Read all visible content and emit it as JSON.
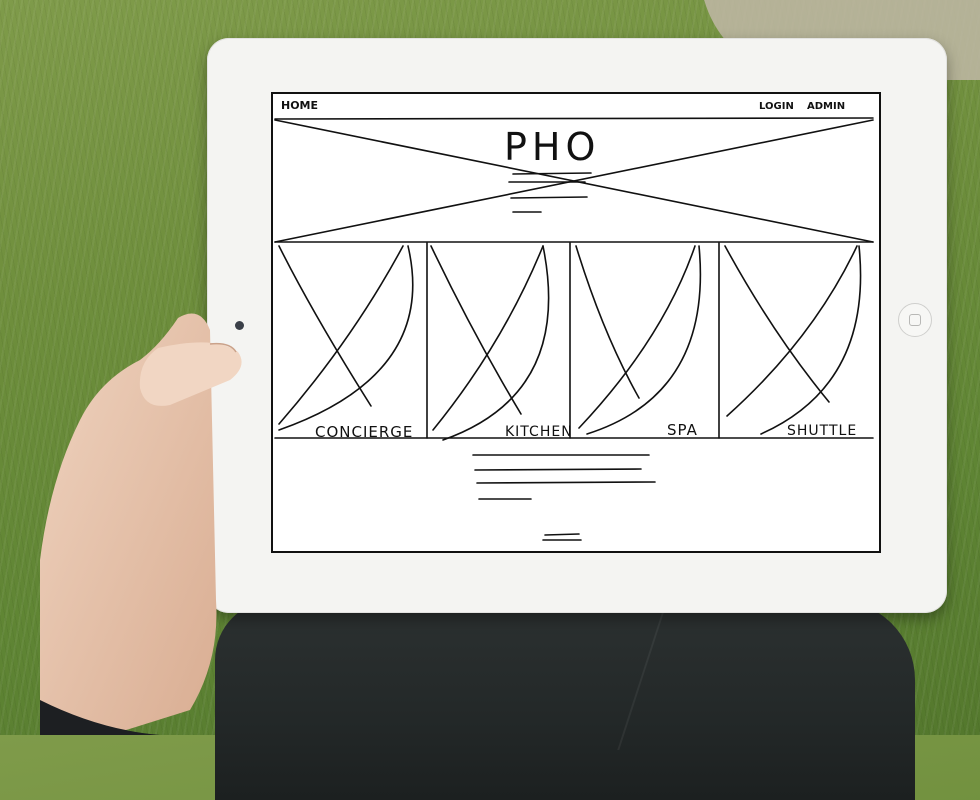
{
  "nav": {
    "home_label": "HOME",
    "login_label": "LOGIN",
    "admin_label": "ADMIN"
  },
  "hero": {
    "title": "PHO"
  },
  "services": [
    {
      "label": "CONCIERGE"
    },
    {
      "label": "KITCHEN"
    },
    {
      "label": "SPA"
    },
    {
      "label": "SHUTTLE"
    }
  ],
  "colors": {
    "ink": "#111111",
    "paper": "#ffffff",
    "tablet_bezel": "#f4f4f2",
    "grass": "#6e8e3c"
  },
  "icons": {
    "hero_image": "image-placeholder-icon",
    "service_image": "image-placeholder-icon",
    "footer_mark": "logo-mark-icon"
  }
}
